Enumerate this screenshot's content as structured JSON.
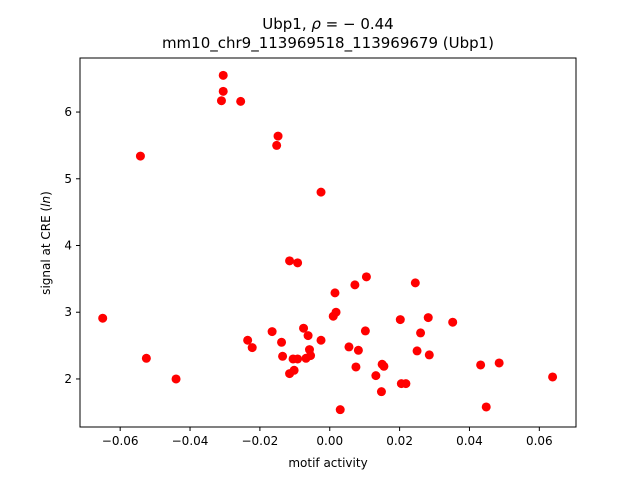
{
  "chart_data": {
    "type": "scatter",
    "title_line1_prefix": "Ubp1, ",
    "title_line1_rho": "ρ",
    "title_line1_suffix": " = − 0.44",
    "title_line2": "mm10_chr9_113969518_113969679 (Ubp1)",
    "xlabel": "motif activity",
    "ylabel_prefix": "signal at CRE (",
    "ylabel_italic": "ln",
    "ylabel_suffix": ")",
    "xlim": [
      -0.0715,
      0.0705
    ],
    "ylim": [
      1.28,
      6.81
    ],
    "xticks": [
      {
        "value": -0.06,
        "label": "−0.06"
      },
      {
        "value": -0.04,
        "label": "−0.04"
      },
      {
        "value": -0.02,
        "label": "−0.02"
      },
      {
        "value": 0.0,
        "label": "0.00"
      },
      {
        "value": 0.02,
        "label": "0.02"
      },
      {
        "value": 0.04,
        "label": "0.04"
      },
      {
        "value": 0.06,
        "label": "0.06"
      }
    ],
    "yticks": [
      {
        "value": 2,
        "label": "2"
      },
      {
        "value": 3,
        "label": "3"
      },
      {
        "value": 4,
        "label": "4"
      },
      {
        "value": 5,
        "label": "5"
      },
      {
        "value": 6,
        "label": "6"
      }
    ],
    "marker_color": "#ff0000",
    "points": [
      {
        "x": -0.065,
        "y": 2.91
      },
      {
        "x": -0.0542,
        "y": 5.34
      },
      {
        "x": -0.0525,
        "y": 2.31
      },
      {
        "x": -0.044,
        "y": 2.0
      },
      {
        "x": -0.0305,
        "y": 6.55
      },
      {
        "x": -0.0305,
        "y": 6.31
      },
      {
        "x": -0.031,
        "y": 6.17
      },
      {
        "x": -0.0255,
        "y": 6.16
      },
      {
        "x": -0.0148,
        "y": 5.64
      },
      {
        "x": -0.0152,
        "y": 5.5
      },
      {
        "x": -0.0025,
        "y": 4.8
      },
      {
        "x": -0.0115,
        "y": 3.77
      },
      {
        "x": -0.0092,
        "y": 3.74
      },
      {
        "x": -0.0235,
        "y": 2.58
      },
      {
        "x": -0.0222,
        "y": 2.47
      },
      {
        "x": -0.0165,
        "y": 2.71
      },
      {
        "x": -0.0138,
        "y": 2.55
      },
      {
        "x": -0.0135,
        "y": 2.34
      },
      {
        "x": -0.0115,
        "y": 2.08
      },
      {
        "x": -0.0105,
        "y": 2.3
      },
      {
        "x": -0.0102,
        "y": 2.13
      },
      {
        "x": -0.0092,
        "y": 2.3
      },
      {
        "x": -0.0075,
        "y": 2.76
      },
      {
        "x": -0.0068,
        "y": 2.31
      },
      {
        "x": -0.0062,
        "y": 2.65
      },
      {
        "x": -0.0058,
        "y": 2.44
      },
      {
        "x": -0.0055,
        "y": 2.35
      },
      {
        "x": -0.0025,
        "y": 2.58
      },
      {
        "x": 0.001,
        "y": 2.94
      },
      {
        "x": 0.0015,
        "y": 3.29
      },
      {
        "x": 0.0018,
        "y": 3.0
      },
      {
        "x": 0.003,
        "y": 1.54
      },
      {
        "x": 0.0055,
        "y": 2.48
      },
      {
        "x": 0.0072,
        "y": 3.41
      },
      {
        "x": 0.0075,
        "y": 2.18
      },
      {
        "x": 0.0082,
        "y": 2.43
      },
      {
        "x": 0.0102,
        "y": 2.72
      },
      {
        "x": 0.0105,
        "y": 3.53
      },
      {
        "x": 0.0132,
        "y": 2.05
      },
      {
        "x": 0.0148,
        "y": 1.81
      },
      {
        "x": 0.015,
        "y": 2.22
      },
      {
        "x": 0.0155,
        "y": 2.19
      },
      {
        "x": 0.0202,
        "y": 2.89
      },
      {
        "x": 0.0205,
        "y": 1.93
      },
      {
        "x": 0.0218,
        "y": 1.93
      },
      {
        "x": 0.0245,
        "y": 3.44
      },
      {
        "x": 0.025,
        "y": 2.42
      },
      {
        "x": 0.026,
        "y": 2.69
      },
      {
        "x": 0.0282,
        "y": 2.92
      },
      {
        "x": 0.0285,
        "y": 2.36
      },
      {
        "x": 0.0352,
        "y": 2.85
      },
      {
        "x": 0.0432,
        "y": 2.21
      },
      {
        "x": 0.0448,
        "y": 1.58
      },
      {
        "x": 0.0485,
        "y": 2.24
      },
      {
        "x": 0.0638,
        "y": 2.03
      }
    ]
  }
}
